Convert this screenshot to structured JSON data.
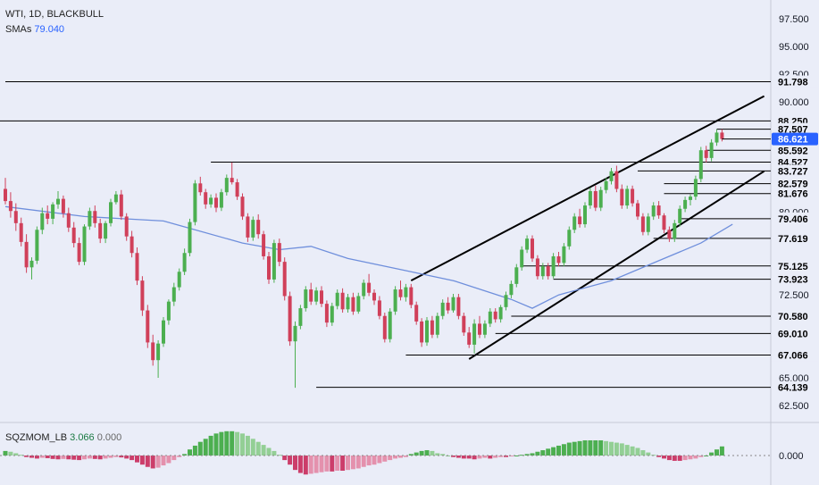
{
  "legend": {
    "symbol": "WTI, 1D, BLACKBULL",
    "sma_label": "SMAs",
    "sma_value": "79.040"
  },
  "oscillator": {
    "name": "SQZMOM_LB",
    "value1": "3.066",
    "value2": "0.000",
    "zero_label": "0.000"
  },
  "colors": {
    "background": "#eaedf8",
    "bull": "#4caf50",
    "bear": "#d0405a",
    "sma": "#6f8fdc",
    "price_tag": "#2962ff",
    "level_tag": "#131722"
  },
  "chart_data": {
    "type": "candlestick",
    "timeframe": "1D",
    "y_axis": {
      "ticks": [
        "97.500",
        "95.000",
        "92.500",
        "90.000",
        "88.250",
        "87.507",
        "85.592",
        "83.727",
        "82.579",
        "81.676",
        "80.000",
        "79.406",
        "77.619",
        "75.125",
        "73.923",
        "72.500",
        "70.580",
        "69.010",
        "67.066",
        "65.000",
        "64.139",
        "62.500"
      ],
      "ylim": [
        61.2,
        99.2
      ]
    },
    "current_price": 86.621,
    "horizontal_levels": [
      91.798,
      84.527,
      81.676,
      79.406,
      77.619,
      75.125,
      73.923,
      70.58,
      69.01,
      67.066,
      64.139
    ],
    "level_labels": [
      "91.798",
      "88.250",
      "87.507",
      "86.621",
      "85.592",
      "84.527",
      "83.727",
      "82.579",
      "81.676",
      "79.406",
      "77.619",
      "75.125",
      "73.923",
      "70.580",
      "69.010",
      "67.066",
      "64.139"
    ],
    "channel_lines": [
      {
        "name": "upper",
        "from": [
          77,
          73.8
        ],
        "to": [
          144,
          90.5
        ]
      },
      {
        "name": "lower",
        "from": [
          88,
          66.7
        ],
        "to": [
          144,
          83.7
        ]
      }
    ],
    "sma_points": [
      [
        0,
        80.5
      ],
      [
        15,
        79.6
      ],
      [
        30,
        79.2
      ],
      [
        45,
        77.2
      ],
      [
        52,
        76.6
      ],
      [
        58,
        76.9
      ],
      [
        65,
        75.8
      ],
      [
        75,
        74.8
      ],
      [
        85,
        73.8
      ],
      [
        96,
        72.1
      ],
      [
        100,
        71.3
      ],
      [
        105,
        72.5
      ],
      [
        115,
        73.8
      ],
      [
        124,
        75.6
      ],
      [
        132,
        77.2
      ],
      [
        138,
        78.9
      ]
    ],
    "candles": [
      [
        82.1,
        83.1,
        80.7,
        81.0
      ],
      [
        81.0,
        81.8,
        79.5,
        80.1
      ],
      [
        80.1,
        80.8,
        78.3,
        79.0
      ],
      [
        79.0,
        79.5,
        76.9,
        77.3
      ],
      [
        77.3,
        78.0,
        74.5,
        75.0
      ],
      [
        75.0,
        75.9,
        73.9,
        75.6
      ],
      [
        75.6,
        78.7,
        75.3,
        78.4
      ],
      [
        78.4,
        80.4,
        78.0,
        79.9
      ],
      [
        79.9,
        80.6,
        78.9,
        79.4
      ],
      [
        79.4,
        80.9,
        78.9,
        80.7
      ],
      [
        80.7,
        81.9,
        80.3,
        81.2
      ],
      [
        81.2,
        81.5,
        79.5,
        79.9
      ],
      [
        79.9,
        80.4,
        78.2,
        78.6
      ],
      [
        78.6,
        79.1,
        76.8,
        77.2
      ],
      [
        77.2,
        77.7,
        75.2,
        75.5
      ],
      [
        75.5,
        78.9,
        75.2,
        78.7
      ],
      [
        78.7,
        80.4,
        78.4,
        80.1
      ],
      [
        80.1,
        80.6,
        78.6,
        79.0
      ],
      [
        79.0,
        79.4,
        77.2,
        77.6
      ],
      [
        77.6,
        79.2,
        77.2,
        79.0
      ],
      [
        79.0,
        81.2,
        78.7,
        80.9
      ],
      [
        80.9,
        81.9,
        80.7,
        81.6
      ],
      [
        81.6,
        82.0,
        79.3,
        79.6
      ],
      [
        79.6,
        79.9,
        77.4,
        77.8
      ],
      [
        77.8,
        78.3,
        75.9,
        76.3
      ],
      [
        76.3,
        76.8,
        73.4,
        73.8
      ],
      [
        73.8,
        74.2,
        70.6,
        71.1
      ],
      [
        71.1,
        71.6,
        67.7,
        68.2
      ],
      [
        68.2,
        68.9,
        66.1,
        66.6
      ],
      [
        66.6,
        68.4,
        65.0,
        68.1
      ],
      [
        68.1,
        70.5,
        67.8,
        70.2
      ],
      [
        70.2,
        72.1,
        69.8,
        71.9
      ],
      [
        71.9,
        73.6,
        71.5,
        73.2
      ],
      [
        73.2,
        74.9,
        72.9,
        74.6
      ],
      [
        74.6,
        76.7,
        74.3,
        76.3
      ],
      [
        76.3,
        79.4,
        76.0,
        79.1
      ],
      [
        79.1,
        82.9,
        78.8,
        82.6
      ],
      [
        82.6,
        83.2,
        81.5,
        81.8
      ],
      [
        81.8,
        82.1,
        80.3,
        80.7
      ],
      [
        80.7,
        81.6,
        80.4,
        81.3
      ],
      [
        81.3,
        81.7,
        80.0,
        80.4
      ],
      [
        80.4,
        82.1,
        80.1,
        81.8
      ],
      [
        81.8,
        83.4,
        81.5,
        83.1
      ],
      [
        83.1,
        84.5,
        82.5,
        82.7
      ],
      [
        82.7,
        83.0,
        81.1,
        81.4
      ],
      [
        81.4,
        81.7,
        79.3,
        79.6
      ],
      [
        79.6,
        79.9,
        77.3,
        77.7
      ],
      [
        77.7,
        79.6,
        77.4,
        79.3
      ],
      [
        79.3,
        79.8,
        77.6,
        78.0
      ],
      [
        78.0,
        78.3,
        75.7,
        76.0
      ],
      [
        76.0,
        76.4,
        73.5,
        73.9
      ],
      [
        73.9,
        77.5,
        73.6,
        77.2
      ],
      [
        77.2,
        77.6,
        75.1,
        75.5
      ],
      [
        75.5,
        75.9,
        72.0,
        72.4
      ],
      [
        72.4,
        72.8,
        67.9,
        68.3
      ],
      [
        68.3,
        70.1,
        64.1,
        69.7
      ],
      [
        69.7,
        71.6,
        69.4,
        71.3
      ],
      [
        71.3,
        73.3,
        71.0,
        73.0
      ],
      [
        73.0,
        73.6,
        71.6,
        71.9
      ],
      [
        71.9,
        73.2,
        71.6,
        72.9
      ],
      [
        72.9,
        73.3,
        71.4,
        71.7
      ],
      [
        71.7,
        72.0,
        69.6,
        70.0
      ],
      [
        70.0,
        71.8,
        69.7,
        71.5
      ],
      [
        71.5,
        73.0,
        71.2,
        72.7
      ],
      [
        72.7,
        73.1,
        70.9,
        71.2
      ],
      [
        71.2,
        72.6,
        70.9,
        72.3
      ],
      [
        72.3,
        72.7,
        70.7,
        71.0
      ],
      [
        71.0,
        72.7,
        70.8,
        72.4
      ],
      [
        72.4,
        73.9,
        72.1,
        73.6
      ],
      [
        73.6,
        74.4,
        72.4,
        72.7
      ],
      [
        72.7,
        73.0,
        71.6,
        72.0
      ],
      [
        72.0,
        72.4,
        70.3,
        70.6
      ],
      [
        70.6,
        70.9,
        68.2,
        68.5
      ],
      [
        68.5,
        71.3,
        68.2,
        71.0
      ],
      [
        71.0,
        73.3,
        70.7,
        73.0
      ],
      [
        73.0,
        73.8,
        72.0,
        72.3
      ],
      [
        72.3,
        73.5,
        71.9,
        73.2
      ],
      [
        73.2,
        73.5,
        71.3,
        71.6
      ],
      [
        71.6,
        71.9,
        69.8,
        70.1
      ],
      [
        70.1,
        70.4,
        67.8,
        68.2
      ],
      [
        68.2,
        70.5,
        67.9,
        70.2
      ],
      [
        70.2,
        70.6,
        68.6,
        68.9
      ],
      [
        68.9,
        70.9,
        68.6,
        70.6
      ],
      [
        70.6,
        72.1,
        70.3,
        71.8
      ],
      [
        71.8,
        72.3,
        70.8,
        71.1
      ],
      [
        71.1,
        72.6,
        70.9,
        72.3
      ],
      [
        72.3,
        72.6,
        70.3,
        70.6
      ],
      [
        70.6,
        70.9,
        68.8,
        69.1
      ],
      [
        69.1,
        69.6,
        67.7,
        68.0
      ],
      [
        68.0,
        70.3,
        67.2,
        69.9
      ],
      [
        69.9,
        70.6,
        68.6,
        68.9
      ],
      [
        68.9,
        70.2,
        68.6,
        69.9
      ],
      [
        69.9,
        71.3,
        69.6,
        71.0
      ],
      [
        71.0,
        71.3,
        70.0,
        70.3
      ],
      [
        70.3,
        71.6,
        70.0,
        71.4
      ],
      [
        71.4,
        72.8,
        71.1,
        72.5
      ],
      [
        72.5,
        73.8,
        72.2,
        73.5
      ],
      [
        73.5,
        75.3,
        73.2,
        75.0
      ],
      [
        75.0,
        76.9,
        74.7,
        76.6
      ],
      [
        76.6,
        77.9,
        76.3,
        77.6
      ],
      [
        77.6,
        77.9,
        75.5,
        75.8
      ],
      [
        75.8,
        76.1,
        73.9,
        74.2
      ],
      [
        74.2,
        75.4,
        73.9,
        75.1
      ],
      [
        75.1,
        75.4,
        73.9,
        74.2
      ],
      [
        74.2,
        76.3,
        74.0,
        76.0
      ],
      [
        76.0,
        76.4,
        75.1,
        75.4
      ],
      [
        75.4,
        77.2,
        75.1,
        76.9
      ],
      [
        76.9,
        78.7,
        76.6,
        78.4
      ],
      [
        78.4,
        79.9,
        78.1,
        79.6
      ],
      [
        79.6,
        80.3,
        78.6,
        78.9
      ],
      [
        78.9,
        80.9,
        78.6,
        80.6
      ],
      [
        80.6,
        82.2,
        80.3,
        81.9
      ],
      [
        81.9,
        82.4,
        80.1,
        80.4
      ],
      [
        80.4,
        82.3,
        80.1,
        82.0
      ],
      [
        82.0,
        83.1,
        81.7,
        82.8
      ],
      [
        82.8,
        84.0,
        82.5,
        83.7
      ],
      [
        83.7,
        84.2,
        81.8,
        82.1
      ],
      [
        82.1,
        82.5,
        80.3,
        80.6
      ],
      [
        80.6,
        82.4,
        80.3,
        82.1
      ],
      [
        82.1,
        82.4,
        80.5,
        80.8
      ],
      [
        80.8,
        81.1,
        79.3,
        79.6
      ],
      [
        79.6,
        79.9,
        77.9,
        78.2
      ],
      [
        78.2,
        79.9,
        77.9,
        79.6
      ],
      [
        79.6,
        80.9,
        79.3,
        80.6
      ],
      [
        80.6,
        81.0,
        79.4,
        79.7
      ],
      [
        79.7,
        79.9,
        78.1,
        78.4
      ],
      [
        78.4,
        78.7,
        77.3,
        77.6
      ],
      [
        77.6,
        79.3,
        77.3,
        79.0
      ],
      [
        79.0,
        80.6,
        78.7,
        80.3
      ],
      [
        80.3,
        81.4,
        80.0,
        81.1
      ],
      [
        81.1,
        81.6,
        80.6,
        81.4
      ],
      [
        81.4,
        83.3,
        81.1,
        83.0
      ],
      [
        83.0,
        85.9,
        82.7,
        85.6
      ],
      [
        85.6,
        86.0,
        84.5,
        84.9
      ],
      [
        84.9,
        86.6,
        84.6,
        86.3
      ],
      [
        86.3,
        87.5,
        86.0,
        87.2
      ],
      [
        87.2,
        87.5,
        86.4,
        86.62
      ]
    ],
    "oscillator_histogram": [
      0.6,
      0.5,
      0.3,
      0.1,
      -0.2,
      -0.3,
      -0.4,
      -0.3,
      -0.35,
      -0.45,
      -0.5,
      -0.45,
      -0.5,
      -0.55,
      -0.6,
      -0.5,
      -0.4,
      -0.45,
      -0.5,
      -0.4,
      -0.3,
      -0.2,
      -0.25,
      -0.4,
      -0.6,
      -0.9,
      -1.2,
      -1.5,
      -1.7,
      -1.6,
      -1.3,
      -1.0,
      -0.6,
      -0.2,
      0.2,
      0.8,
      1.3,
      1.8,
      2.2,
      2.6,
      2.9,
      3.1,
      3.2,
      3.2,
      3.1,
      2.9,
      2.6,
      2.2,
      1.8,
      1.4,
      1.0,
      0.6,
      0.1,
      -0.6,
      -1.2,
      -1.9,
      -2.3,
      -2.5,
      -2.4,
      -2.3,
      -2.2,
      -2.1,
      -2.1,
      -2.0,
      -2.0,
      -1.9,
      -1.8,
      -1.7,
      -1.5,
      -1.3,
      -1.2,
      -1.0,
      -0.8,
      -0.6,
      -0.4,
      -0.3,
      -0.2,
      0.2,
      0.4,
      0.6,
      0.7,
      0.6,
      0.3,
      0.2,
      0.0,
      -0.2,
      -0.3,
      -0.4,
      -0.4,
      -0.5,
      -0.4,
      -0.3,
      -0.4,
      -0.3,
      -0.2,
      -0.2,
      -0.1,
      0.0,
      0.1,
      0.2,
      0.3,
      0.5,
      0.7,
      0.9,
      1.1,
      1.3,
      1.5,
      1.7,
      1.8,
      1.9,
      2.0,
      2.0,
      2.0,
      2.0,
      1.9,
      1.8,
      1.7,
      1.6,
      1.4,
      1.2,
      1.0,
      0.7,
      0.4,
      0.1,
      -0.2,
      -0.4,
      -0.6,
      -0.7,
      -0.7,
      -0.6,
      -0.5,
      -0.4,
      -0.2,
      0.0,
      0.4,
      0.8,
      1.2
    ]
  }
}
